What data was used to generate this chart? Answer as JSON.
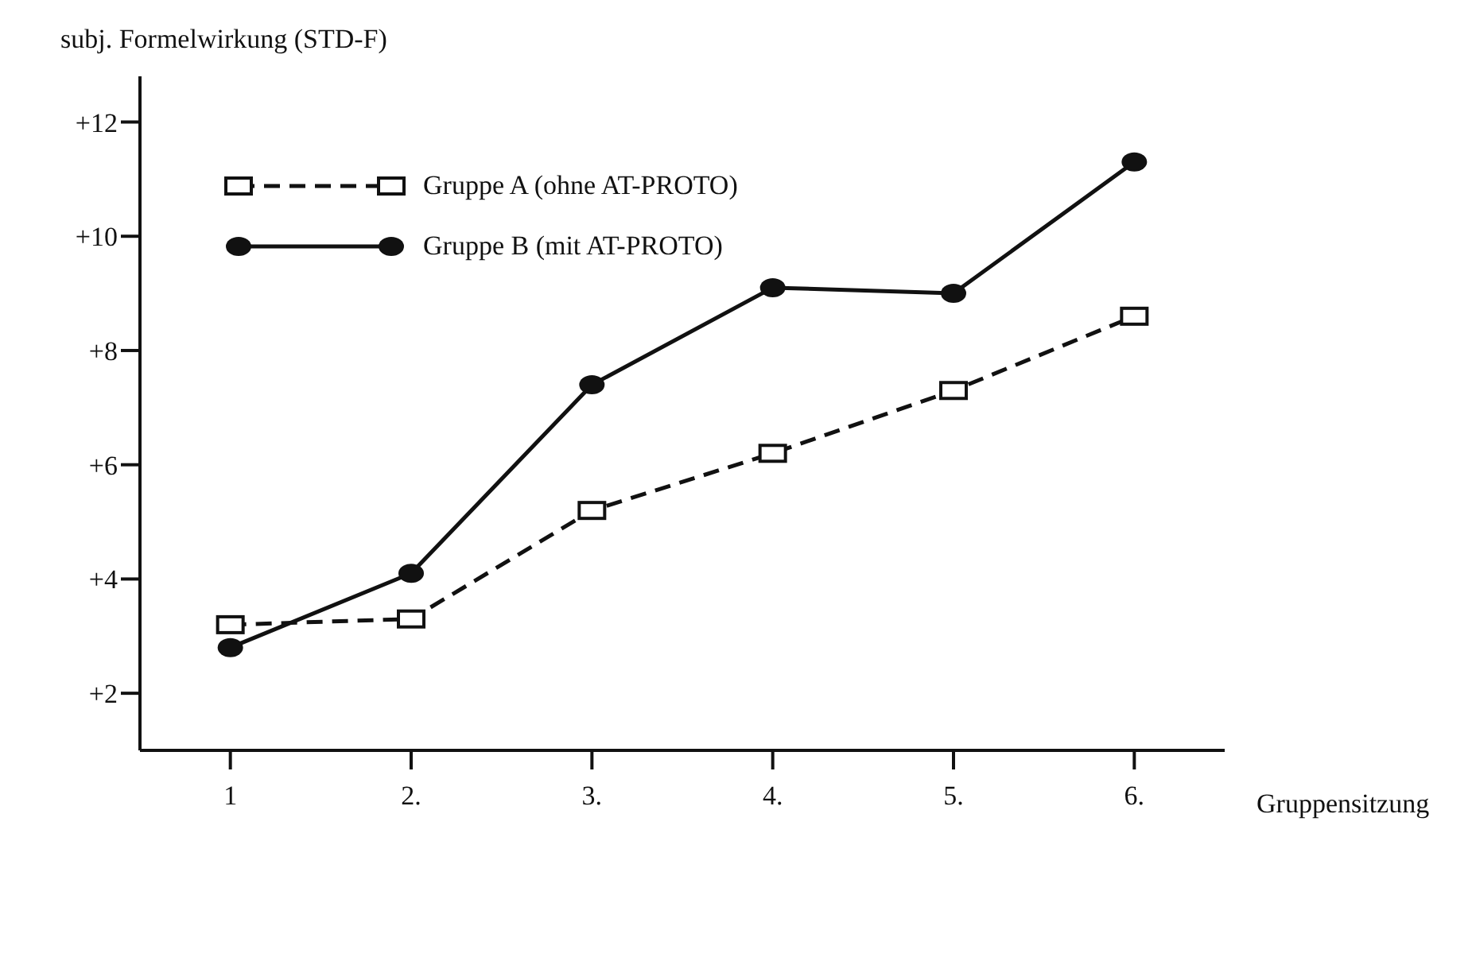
{
  "chart_data": {
    "type": "line",
    "xlabel": "Gruppensitzung",
    "ylabel": "subj. Formelwirkung (STD-F)",
    "categories": [
      "1",
      "2.",
      "3.",
      "4.",
      "5.",
      "6."
    ],
    "series": [
      {
        "name": "Gruppe A (ohne AT-PROTO)",
        "color": "#111111",
        "values": [
          3.2,
          3.3,
          5.2,
          6.2,
          7.3,
          8.6
        ],
        "marker": "square",
        "line_style": "dashed"
      },
      {
        "name": "Gruppe B (mit AT-PROTO)",
        "color": "#111111",
        "values": [
          2.8,
          4.1,
          7.4,
          9.1,
          9.0,
          11.3
        ],
        "marker": "circle",
        "line_style": "solid"
      }
    ],
    "ylim": [
      1,
      12.8
    ],
    "yticks": [
      {
        "value": 2,
        "label": "+2"
      },
      {
        "value": 4,
        "label": "+4"
      },
      {
        "value": 6,
        "label": "+6"
      },
      {
        "value": 8,
        "label": "+8"
      },
      {
        "value": 10,
        "label": "+10"
      },
      {
        "value": 12,
        "label": "+12"
      }
    ],
    "grid": false,
    "legend": "top left"
  }
}
